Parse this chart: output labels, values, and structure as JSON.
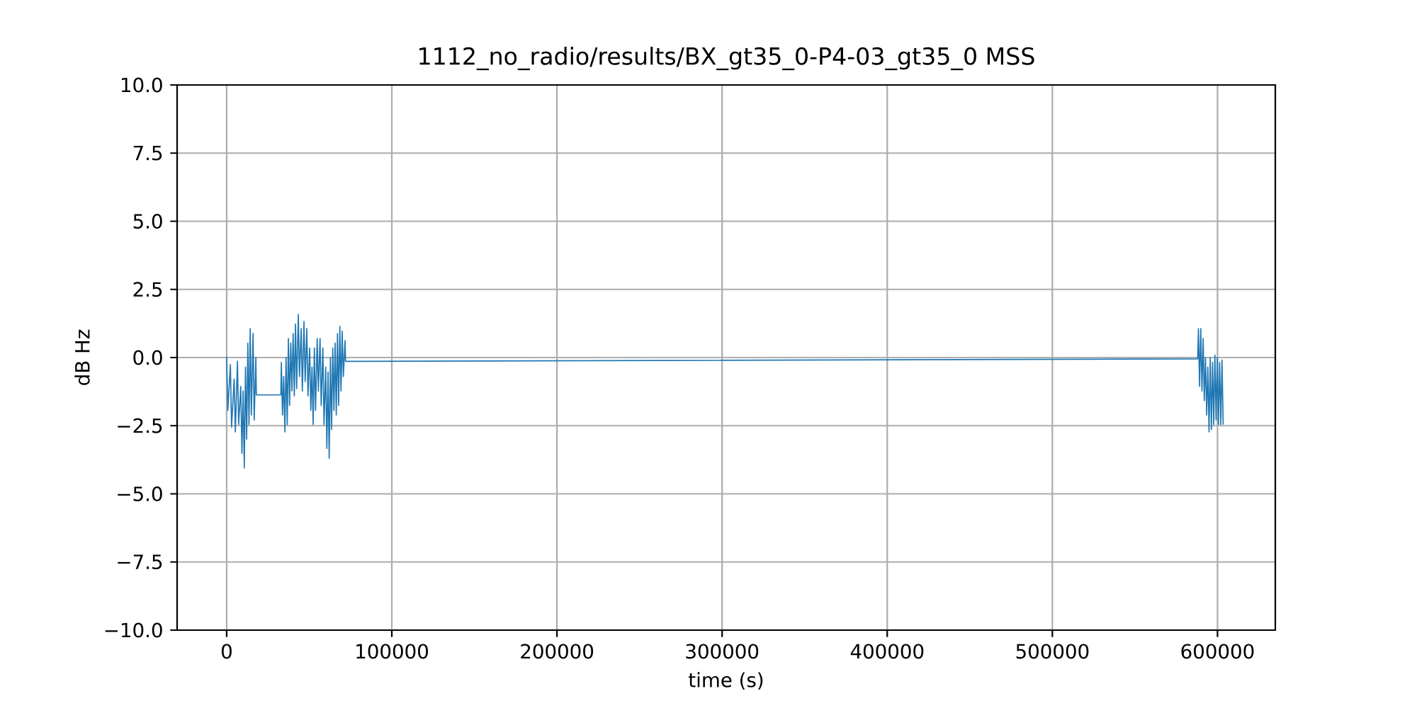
{
  "chart_data": {
    "type": "line",
    "title": "1112_no_radio/results/BX_gt35_0-P4-03_gt35_0 MSS",
    "xlabel": "time (s)",
    "ylabel": "dB Hz",
    "x": [
      0,
      700,
      2260,
      2960,
      4540,
      5240,
      6540,
      7240,
      8540,
      9240,
      9970,
      10670,
      11400,
      12100,
      12830,
      13530,
      14250,
      14950,
      15970,
      16670,
      17680,
      17960,
      32800,
      33110,
      33810,
      34540,
      35240,
      35970,
      36670,
      37390,
      38090,
      38820,
      39520,
      40250,
      40950,
      41680,
      42380,
      43390,
      44090,
      45110,
      45810,
      46820,
      47520,
      48530,
      49230,
      50250,
      50950,
      51680,
      52380,
      53110,
      53810,
      54820,
      55520,
      56540,
      57240,
      58250,
      58950,
      59960,
      60660,
      61390,
      62090,
      62820,
      63520,
      64250,
      64950,
      65670,
      66370,
      67100,
      67800,
      68530,
      69230,
      69960,
      70660,
      71670,
      72000,
      588000,
      588440,
      589140,
      589870,
      590570,
      591300,
      592000,
      592730,
      593430,
      594160,
      594860,
      595590,
      596290,
      597010,
      597710,
      598440,
      599140,
      599870,
      600570,
      601300,
      602000,
      602730,
      603430
    ],
    "series": [
      {
        "color": "#1f77b4",
        "values": [
          0.04,
          -1.94,
          -0.26,
          -2.55,
          -0.79,
          -2.73,
          -0.14,
          -2.46,
          -1.06,
          -3.52,
          -1.23,
          -4.05,
          -0.35,
          -3.0,
          0.53,
          -2.46,
          1.06,
          -2.11,
          0.88,
          -2.29,
          0,
          -1.37,
          -1.37,
          -0.18,
          -2.11,
          -0.7,
          -2.73,
          0,
          -2.46,
          0.7,
          -1.76,
          0.53,
          -1.23,
          0.88,
          -1.41,
          1.23,
          -1.14,
          1.58,
          -0.7,
          1.06,
          -1.23,
          1.32,
          -0.88,
          1.06,
          -1.41,
          0.35,
          -1.94,
          -0.35,
          -2.46,
          0.35,
          -1.94,
          0.7,
          -1.23,
          0.7,
          -1.76,
          0.35,
          -2.46,
          -0.35,
          -3.34,
          -0.53,
          -3.7,
          0,
          -2.64,
          0.35,
          -1.94,
          0.53,
          -2.11,
          0.88,
          -1.76,
          1.14,
          -1.23,
          0.97,
          -0.7,
          0.62,
          -0.14,
          -0.05,
          1.06,
          -1.06,
          1.06,
          -1.23,
          0.7,
          -1.58,
          0,
          -2.11,
          -0.35,
          -2.73,
          0,
          -2.64,
          -0.18,
          -2.46,
          0.09,
          -2.29,
          0,
          -2.46,
          -0.18,
          -2.46,
          -0.09,
          -2.46
        ]
      }
    ],
    "xlim": [
      -30000,
      635000
    ],
    "ylim": [
      -10,
      10
    ],
    "xticks": [
      0,
      100000,
      200000,
      300000,
      400000,
      500000,
      600000
    ],
    "yticks": [
      {
        "value": -10,
        "label": "−10.0"
      },
      {
        "value": -7.5,
        "label": "−7.5"
      },
      {
        "value": -5,
        "label": "−5.0"
      },
      {
        "value": -2.5,
        "label": "−2.5"
      },
      {
        "value": 0,
        "label": "0.0"
      },
      {
        "value": 2.5,
        "label": "2.5"
      },
      {
        "value": 5,
        "label": "5.0"
      },
      {
        "value": 7.5,
        "label": "7.5"
      },
      {
        "value": 10,
        "label": "10.0"
      }
    ],
    "grid": true,
    "marker": "none",
    "line_style": "solid"
  }
}
